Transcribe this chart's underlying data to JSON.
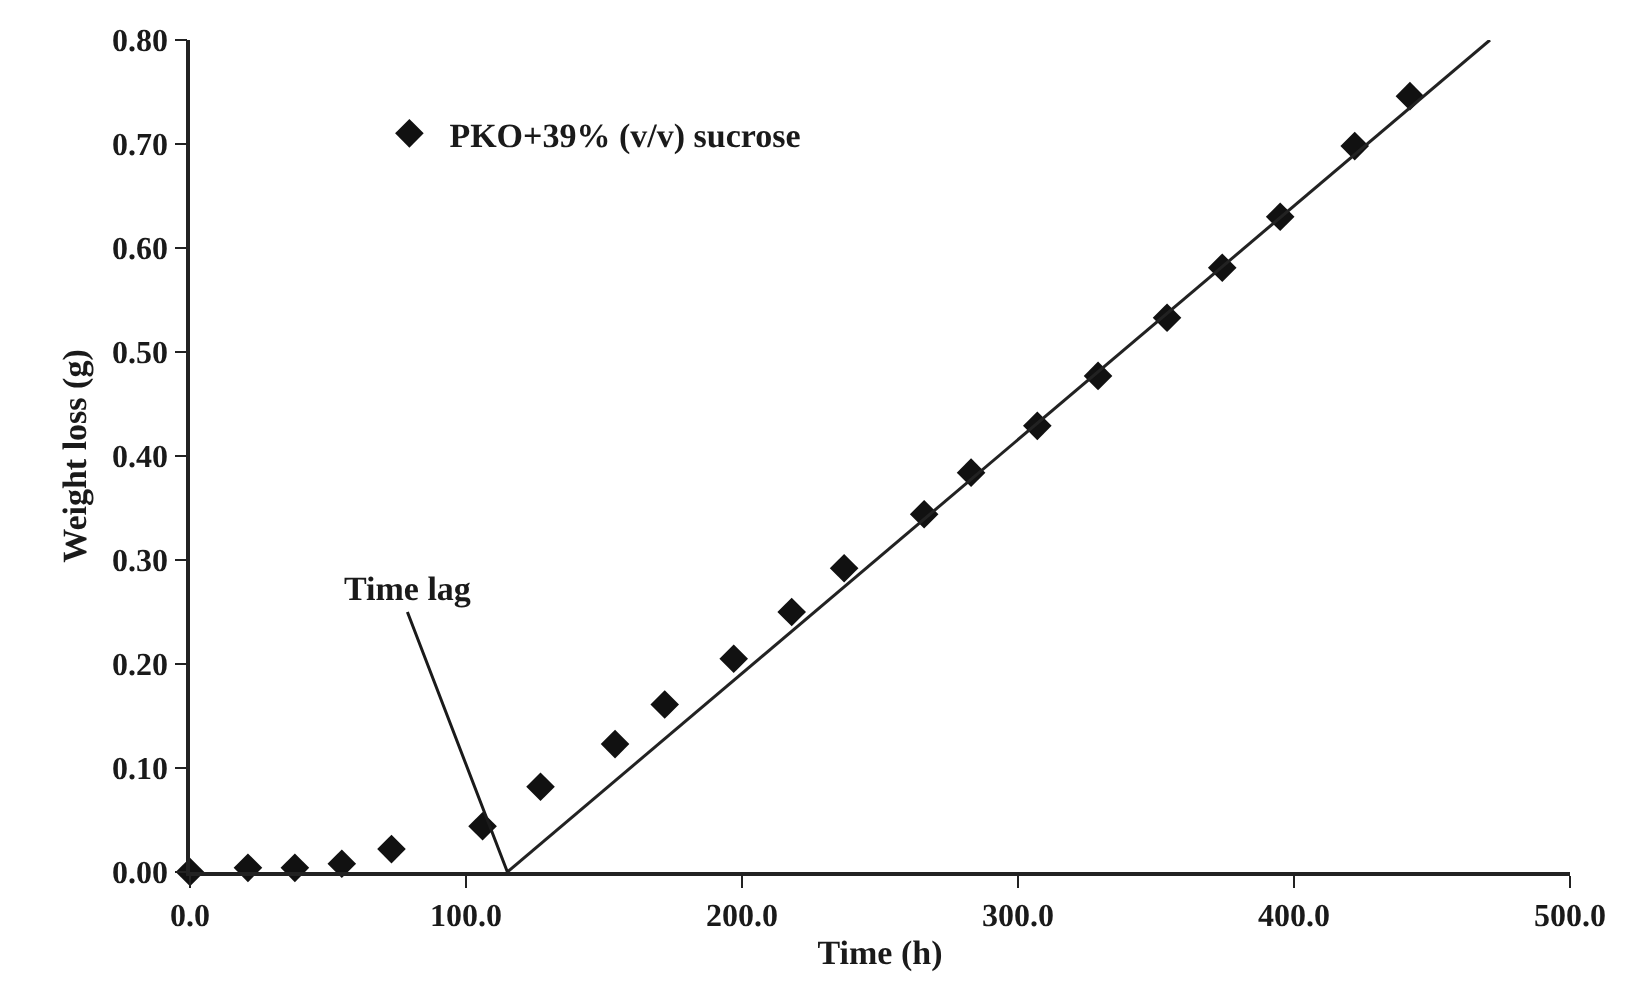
{
  "chart_data": {
    "type": "scatter",
    "xlabel": "Time (h)",
    "ylabel": "Weight loss (g)",
    "xlim": [
      0,
      500
    ],
    "ylim": [
      0,
      0.8
    ],
    "xticks": [
      {
        "value": 0,
        "label": "0.0"
      },
      {
        "value": 100,
        "label": "100.0"
      },
      {
        "value": 200,
        "label": "200.0"
      },
      {
        "value": 300,
        "label": "300.0"
      },
      {
        "value": 400,
        "label": "400.0"
      },
      {
        "value": 500,
        "label": "500.0"
      }
    ],
    "yticks": [
      {
        "value": 0,
        "label": "0.00"
      },
      {
        "value": 0.1,
        "label": "0.10"
      },
      {
        "value": 0.2,
        "label": "0.20"
      },
      {
        "value": 0.3,
        "label": "0.30"
      },
      {
        "value": 0.4,
        "label": "0.40"
      },
      {
        "value": 0.5,
        "label": "0.50"
      },
      {
        "value": 0.6,
        "label": "0.60"
      },
      {
        "value": 0.7,
        "label": "0.70"
      },
      {
        "value": 0.8,
        "label": "0.80"
      }
    ],
    "legend": "top left",
    "marker": "diamond",
    "series": [
      {
        "name": "PKO+39% (v/v) sucrose",
        "color": "#111111",
        "x": [
          0,
          21,
          38,
          55,
          73,
          106,
          127,
          154,
          172,
          197,
          218,
          237,
          266,
          283,
          307,
          329,
          354,
          374,
          395,
          422,
          442
        ],
        "values": [
          0,
          0.004,
          0.004,
          0.008,
          0.022,
          0.044,
          0.082,
          0.123,
          0.161,
          0.205,
          0.25,
          0.292,
          0.344,
          0.384,
          0.429,
          0.477,
          0.533,
          0.581,
          0.63,
          0.698,
          0.746
        ]
      },
      {
        "type": "line",
        "color": "#222222",
        "line_style": "solid",
        "marker": "none",
        "x": [
          115,
          471
        ],
        "values": [
          0,
          0.8
        ]
      }
    ],
    "annotations": [
      {
        "text": "Time lag",
        "x": 115,
        "y": 0
      }
    ]
  }
}
